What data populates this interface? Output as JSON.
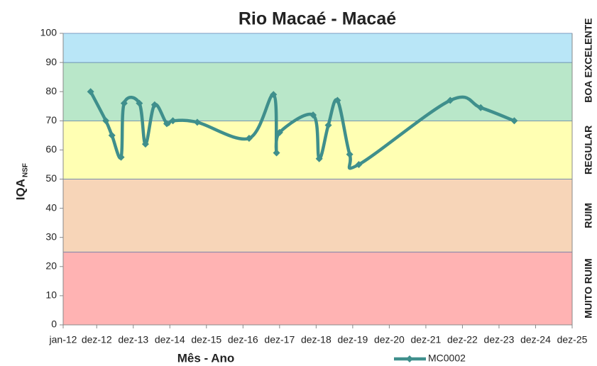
{
  "chart_data": {
    "type": "line",
    "title": "Rio Macaé - Macaé",
    "y_label": "IQA",
    "y_label_sub": "NSF",
    "x_label": "Mês - Ano",
    "ylim": [
      0,
      100
    ],
    "yticks": [
      0,
      10,
      20,
      30,
      40,
      50,
      60,
      70,
      80,
      90,
      100
    ],
    "xlim": [
      "2012-01",
      "2025-12"
    ],
    "xticks": [
      {
        "value": "2012-01",
        "label": "jan-12"
      },
      {
        "value": "2012-12",
        "label": "dez-12"
      },
      {
        "value": "2013-12",
        "label": "dez-13"
      },
      {
        "value": "2014-12",
        "label": "dez-14"
      },
      {
        "value": "2015-12",
        "label": "dez-15"
      },
      {
        "value": "2016-12",
        "label": "dez-16"
      },
      {
        "value": "2017-12",
        "label": "dez-17"
      },
      {
        "value": "2018-12",
        "label": "dez-18"
      },
      {
        "value": "2019-12",
        "label": "dez-19"
      },
      {
        "value": "2020-12",
        "label": "dez-20"
      },
      {
        "value": "2021-12",
        "label": "dez-21"
      },
      {
        "value": "2022-12",
        "label": "dez-22"
      },
      {
        "value": "2023-12",
        "label": "dez-23"
      },
      {
        "value": "2024-12",
        "label": "dez-24"
      },
      {
        "value": "2025-12",
        "label": "dez-25"
      }
    ],
    "bands": [
      {
        "name": "MUITO RUIM",
        "from": 0,
        "to": 25,
        "color": "#ffb3b3"
      },
      {
        "name": "RUIM",
        "from": 25,
        "to": 50,
        "color": "#f7d5b8"
      },
      {
        "name": "REGULAR",
        "from": 50,
        "to": 70,
        "color": "#ffffb3"
      },
      {
        "name": "BOA",
        "from": 70,
        "to": 90,
        "color": "#b9e7c9"
      },
      {
        "name": "EXCELENTE",
        "from": 90,
        "to": 100,
        "color": "#b9e6f7"
      }
    ],
    "x": [
      "2012-10",
      "2013-03",
      "2013-05",
      "2013-08",
      "2013-09",
      "2014-02",
      "2014-04",
      "2014-07",
      "2014-11",
      "2015-01",
      "2015-09",
      "2017-02",
      "2017-10",
      "2017-11",
      "2017-12",
      "2018-11",
      "2019-01",
      "2019-04",
      "2019-07",
      "2019-11",
      "2020-02",
      "2022-08",
      "2023-06",
      "2024-05"
    ],
    "series": [
      {
        "name": "MC0002",
        "color": "#3f8f8c",
        "values": [
          80,
          70,
          65,
          57.5,
          76,
          76,
          62,
          75.5,
          69,
          70,
          69.5,
          64,
          79,
          59,
          66,
          72,
          57,
          68.5,
          77,
          58.5,
          55,
          77,
          74.5,
          70
        ]
      }
    ]
  }
}
